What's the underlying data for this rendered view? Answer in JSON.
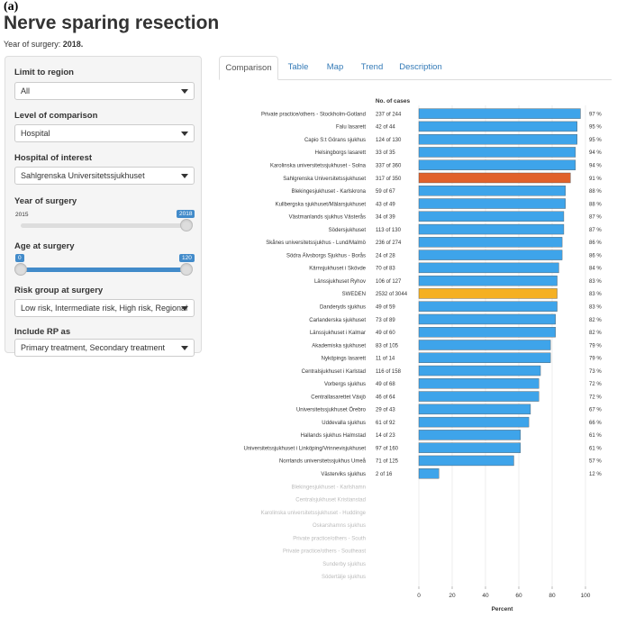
{
  "figure_label": "(a)",
  "page_title": "Nerve sparing resection",
  "subtitle": {
    "label": "Year of surgery: ",
    "value": "2018."
  },
  "sidebar": {
    "region": {
      "label": "Limit to region",
      "value": "All"
    },
    "level": {
      "label": "Level of comparison",
      "value": "Hospital"
    },
    "hospital": {
      "label": "Hospital of interest",
      "value": "Sahlgrenska Universitetssjukhuset"
    },
    "year": {
      "label": "Year of surgery",
      "min": "2015",
      "max": "2018",
      "value": "2018"
    },
    "age": {
      "label": "Age at surgery",
      "min": "0",
      "max": "120",
      "from": "0",
      "to": "120"
    },
    "risk": {
      "label": "Risk group at surgery",
      "value": "Low risk, Intermediate risk, High risk, Regional"
    },
    "rp": {
      "label": "Include RP as",
      "value": "Primary treatment, Secondary treatment"
    }
  },
  "tabs": [
    "Comparison",
    "Table",
    "Map",
    "Trend",
    "Description"
  ],
  "active_tab": "Comparison",
  "chart_data": {
    "type": "bar",
    "orientation": "horizontal",
    "cases_header": "No. of cases",
    "xlabel": "Percent",
    "xlim": [
      0,
      100
    ],
    "xticks": [
      0,
      20,
      40,
      60,
      80,
      100
    ],
    "grid": true,
    "colors": {
      "default": "#3ea4ea",
      "highlight": "#e1612b",
      "national": "#f5b022",
      "missing_label": "#bbbbbb"
    },
    "rows": [
      {
        "name": "Private practice/others - Stockholm-Gotland",
        "cases": "237 of 244",
        "value": 97,
        "pct": "97 %",
        "kind": "default"
      },
      {
        "name": "Falu lasarett",
        "cases": "42 of 44",
        "value": 95,
        "pct": "95 %",
        "kind": "default"
      },
      {
        "name": "Capio S:t Görans sjukhus",
        "cases": "124 of 130",
        "value": 95,
        "pct": "95 %",
        "kind": "default"
      },
      {
        "name": "Helsingborgs lasarett",
        "cases": "33 of 35",
        "value": 94,
        "pct": "94 %",
        "kind": "default"
      },
      {
        "name": "Karolinska universitetssjukhuset - Solna",
        "cases": "337 of 360",
        "value": 94,
        "pct": "94 %",
        "kind": "default"
      },
      {
        "name": "Sahlgrenska Universitetssjukhuset",
        "cases": "317 of 350",
        "value": 91,
        "pct": "91 %",
        "kind": "highlight"
      },
      {
        "name": "Blekingesjukhuset - Karlskrona",
        "cases": "59 of 67",
        "value": 88,
        "pct": "88 %",
        "kind": "default"
      },
      {
        "name": "Kullbergska sjukhuset/Mälarsjukhuset",
        "cases": "43 of 49",
        "value": 88,
        "pct": "88 %",
        "kind": "default"
      },
      {
        "name": "Västmanlands sjukhus Västerås",
        "cases": "34 of 39",
        "value": 87,
        "pct": "87 %",
        "kind": "default"
      },
      {
        "name": "Södersjukhuset",
        "cases": "113 of 130",
        "value": 87,
        "pct": "87 %",
        "kind": "default"
      },
      {
        "name": "Skånes universitetssjukhus - Lund/Malmö",
        "cases": "236 of 274",
        "value": 86,
        "pct": "86 %",
        "kind": "default"
      },
      {
        "name": "Södra Älvsborgs Sjukhus - Borås",
        "cases": "24 of 28",
        "value": 86,
        "pct": "86 %",
        "kind": "default"
      },
      {
        "name": "Kärnsjukhuset i Skövde",
        "cases": "70 of 83",
        "value": 84,
        "pct": "84 %",
        "kind": "default"
      },
      {
        "name": "Länssjukhuset Ryhov",
        "cases": "106 of 127",
        "value": 83,
        "pct": "83 %",
        "kind": "default"
      },
      {
        "name": "SWEDEN",
        "cases": "2532 of 3044",
        "value": 83,
        "pct": "83 %",
        "kind": "national"
      },
      {
        "name": "Danderyds sjukhus",
        "cases": "49 of 59",
        "value": 83,
        "pct": "83 %",
        "kind": "default"
      },
      {
        "name": "Carlanderska sjukhuset",
        "cases": "73 of 89",
        "value": 82,
        "pct": "82 %",
        "kind": "default"
      },
      {
        "name": "Länssjukhuset i Kalmar",
        "cases": "49 of 60",
        "value": 82,
        "pct": "82 %",
        "kind": "default"
      },
      {
        "name": "Akademiska sjukhuset",
        "cases": "83 of 105",
        "value": 79,
        "pct": "79 %",
        "kind": "default"
      },
      {
        "name": "Nyköpings lasarett",
        "cases": "11 of 14",
        "value": 79,
        "pct": "79 %",
        "kind": "default"
      },
      {
        "name": "Centralsjukhuset i Karlstad",
        "cases": "116 of 158",
        "value": 73,
        "pct": "73 %",
        "kind": "default"
      },
      {
        "name": "Vorbergs sjukhus",
        "cases": "49 of 68",
        "value": 72,
        "pct": "72 %",
        "kind": "default"
      },
      {
        "name": "Centrallasarettet Växjö",
        "cases": "46 of 64",
        "value": 72,
        "pct": "72 %",
        "kind": "default"
      },
      {
        "name": "Universitetssjukhuset Örebro",
        "cases": "29 of 43",
        "value": 67,
        "pct": "67 %",
        "kind": "default"
      },
      {
        "name": "Uddevalla sjukhus",
        "cases": "61 of 92",
        "value": 66,
        "pct": "66 %",
        "kind": "default"
      },
      {
        "name": "Hallands sjukhus Halmstad",
        "cases": "14 of 23",
        "value": 61,
        "pct": "61 %",
        "kind": "default"
      },
      {
        "name": "Universitetssjukhuset i Linköping/Vrinnevisjukhuset",
        "cases": "97 of 160",
        "value": 61,
        "pct": "61 %",
        "kind": "default"
      },
      {
        "name": "Norrlands universitetssjukhus Umeå",
        "cases": "71 of 125",
        "value": 57,
        "pct": "57 %",
        "kind": "default"
      },
      {
        "name": "Västerviks sjukhus",
        "cases": "2 of 16",
        "value": 12,
        "pct": "12 %",
        "kind": "default"
      },
      {
        "name": "Blekingesjukhuset - Karlshamn",
        "cases": "",
        "value": null,
        "pct": "",
        "kind": "missing"
      },
      {
        "name": "Centralsjukhuset Kristianstad",
        "cases": "",
        "value": null,
        "pct": "",
        "kind": "missing"
      },
      {
        "name": "Karolinska universitetssjukhuset - Huddinge",
        "cases": "",
        "value": null,
        "pct": "",
        "kind": "missing"
      },
      {
        "name": "Oskarshamns sjukhus",
        "cases": "",
        "value": null,
        "pct": "",
        "kind": "missing"
      },
      {
        "name": "Private practice/others - South",
        "cases": "",
        "value": null,
        "pct": "",
        "kind": "missing"
      },
      {
        "name": "Private practice/others - Southeast",
        "cases": "",
        "value": null,
        "pct": "",
        "kind": "missing"
      },
      {
        "name": "Sunderby sjukhus",
        "cases": "",
        "value": null,
        "pct": "",
        "kind": "missing"
      },
      {
        "name": "Södertälje sjukhus",
        "cases": "",
        "value": null,
        "pct": "",
        "kind": "missing"
      }
    ]
  }
}
